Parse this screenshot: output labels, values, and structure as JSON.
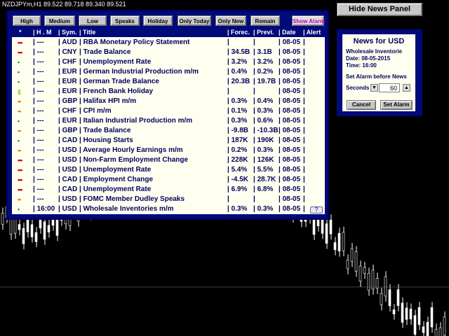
{
  "chart": {
    "title": "NZDJPYm,H1  89.522 89.718 89.340 89.521",
    "colors": {
      "background": "#000000",
      "candle": "#ffffff"
    }
  },
  "filters": {
    "high": "High",
    "medium": "Medium",
    "low": "Low",
    "speaks": "Speaks",
    "holiday": "Holiday",
    "only_today": "Only Today",
    "only_new": "Only New",
    "remain": "Remain",
    "show_alarm": "Show Alarm"
  },
  "table": {
    "headers": {
      "imp": "*",
      "hm": "| H . M",
      "sym": "| Sym.",
      "title": "| Title",
      "forecast": "| Forec.",
      "previous": "| Previ.",
      "date": "| Date",
      "alert": "| Alert"
    },
    "rows": [
      {
        "imp": "•••",
        "imp_color": "#d00000",
        "hm": "| ---",
        "sym": "| AUD",
        "title": "| RBA Monetary Policy Statement",
        "forecast": "|",
        "previous": "|",
        "date": "| 08-05",
        "alert": "|"
      },
      {
        "imp": "•••",
        "imp_color": "#d00000",
        "hm": "| ---",
        "sym": "| CNY",
        "title": "| Trade Balance",
        "forecast": "| 34.5B",
        "previous": "| 3.1B",
        "date": "| 08-05",
        "alert": "|"
      },
      {
        "imp": "•",
        "imp_color": "#00a000",
        "hm": "| ---",
        "sym": "| CHF",
        "title": "| Unemployment Rate",
        "forecast": "| 3.2%",
        "previous": "| 3.2%",
        "date": "| 08-05",
        "alert": "|"
      },
      {
        "imp": "•",
        "imp_color": "#00a000",
        "hm": "| ---",
        "sym": "| EUR",
        "title": "| German Industrial Production m/m",
        "forecast": "| 0.4%",
        "previous": "| 0.2%",
        "date": "| 08-05",
        "alert": "|"
      },
      {
        "imp": "•",
        "imp_color": "#00a000",
        "hm": "| ---",
        "sym": "| EUR",
        "title": "| German Trade Balance",
        "forecast": "| 20.3B",
        "previous": "| 19.7B",
        "date": "| 08-05",
        "alert": "|"
      },
      {
        "imp": "▮",
        "imp_color": "#a0e060",
        "hm": "| ---",
        "sym": "| EUR",
        "title": "| French Bank Holiday",
        "forecast": "|",
        "previous": "|",
        "date": "| 08-05",
        "alert": "|"
      },
      {
        "imp": "••",
        "imp_color": "#e08000",
        "hm": "| ---",
        "sym": "| GBP",
        "title": "| Halifax HPI m/m",
        "forecast": "| 0.3%",
        "previous": "| 0.4%",
        "date": "| 08-05",
        "alert": "|"
      },
      {
        "imp": "••",
        "imp_color": "#e08000",
        "hm": "| ---",
        "sym": "| CHF",
        "title": "| CPI m/m",
        "forecast": "| 0.1%",
        "previous": "| 0.3%",
        "date": "| 08-05",
        "alert": "|"
      },
      {
        "imp": "•",
        "imp_color": "#00a000",
        "hm": "| ---",
        "sym": "| EUR",
        "title": "| Italian Industrial Production m/m",
        "forecast": "| 0.3%",
        "previous": "| 0.6%",
        "date": "| 08-05",
        "alert": "|"
      },
      {
        "imp": "••",
        "imp_color": "#e08000",
        "hm": "| ---",
        "sym": "| GBP",
        "title": "| Trade Balance",
        "forecast": "| -9.8B",
        "previous": "| -10.3B",
        "date": "| 08-05",
        "alert": "|"
      },
      {
        "imp": "•",
        "imp_color": "#00a000",
        "hm": "| ---",
        "sym": "| CAD",
        "title": "| Housing Starts",
        "forecast": "| 187K",
        "previous": "| 190K",
        "date": "| 08-05",
        "alert": "|"
      },
      {
        "imp": "••",
        "imp_color": "#e08000",
        "hm": "| ---",
        "sym": "| USD",
        "title": "| Average Hourly Earnings m/m",
        "forecast": "| 0.2%",
        "previous": "| 0.3%",
        "date": "| 08-05",
        "alert": "|"
      },
      {
        "imp": "•••",
        "imp_color": "#d00000",
        "hm": "| ---",
        "sym": "| USD",
        "title": "| Non-Farm Employment Change",
        "forecast": "| 228K",
        "previous": "| 126K",
        "date": "| 08-05",
        "alert": "|"
      },
      {
        "imp": "•••",
        "imp_color": "#d00000",
        "hm": "| ---",
        "sym": "| USD",
        "title": "| Unemployment Rate",
        "forecast": "| 5.4%",
        "previous": "| 5.5%",
        "date": "| 08-05",
        "alert": "|"
      },
      {
        "imp": "•••",
        "imp_color": "#d00000",
        "hm": "| ---",
        "sym": "| CAD",
        "title": "| Employment Change",
        "forecast": "| -4.5K",
        "previous": "| 28.7K",
        "date": "| 08-05",
        "alert": "|"
      },
      {
        "imp": "•••",
        "imp_color": "#d00000",
        "hm": "| ---",
        "sym": "| CAD",
        "title": "| Unemployment Rate",
        "forecast": "| 6.9%",
        "previous": "| 6.8%",
        "date": "| 08-05",
        "alert": "|"
      },
      {
        "imp": "••",
        "imp_color": "#e08000",
        "hm": "| ---",
        "sym": "| USD",
        "title": "| FOMC Member Dudley Speaks",
        "forecast": "|",
        "previous": "|",
        "date": "| 08-05",
        "alert": "|"
      },
      {
        "imp": "•",
        "imp_color": "#00a000",
        "hm": "| 16:00",
        "sym": "| USD",
        "title": "| Wholesale Inventories m/m",
        "forecast": "| 0.3%",
        "previous": "| 0.3%",
        "date": "| 08-05",
        "alert": "|"
      }
    ],
    "help_icon": "?"
  },
  "hide_button": "Hide News Panel",
  "usd_panel": {
    "title": "News for USD",
    "event": "Wholesale Inventorie",
    "date": "Date: 08-05-2015",
    "time": "Time: 16:00",
    "alarm_label": "Set Alarm before News",
    "seconds_label": "Seconds",
    "seconds_value": "60",
    "cancel": "Cancel",
    "set_alarm": "Set Alarm"
  },
  "colors": {
    "panel": "#000a7a",
    "table_bg": "#fffff0",
    "text": "#000060",
    "high": "#d00000",
    "medium": "#e08000",
    "low": "#00a000",
    "holiday": "#a0e060"
  }
}
